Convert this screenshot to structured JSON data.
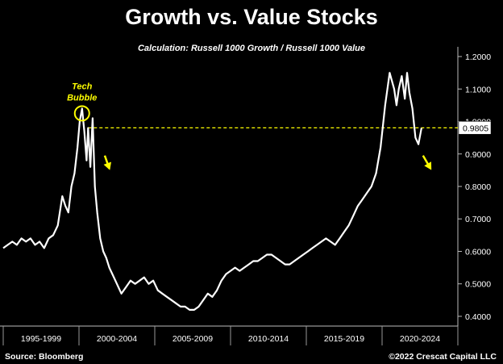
{
  "title": "Growth vs. Value Stocks",
  "subtitle": "Calculation: Russell 1000 Growth / Russell 1000 Value",
  "source": "Source: Bloomberg",
  "copyright": "©2022 Crescat Capital LLC",
  "colors": {
    "background": "#000000",
    "line": "#ffffff",
    "highlight": "#ffff00"
  },
  "chart_data": {
    "type": "line",
    "title": "Growth vs. Value Stocks",
    "subtitle": "Calculation: Russell 1000 Growth / Russell 1000 Value",
    "xlabel": "",
    "ylabel": "",
    "x_period_labels": [
      "1995-1999",
      "2000-2004",
      "2005-2009",
      "2010-2014",
      "2015-2019",
      "2020-2024"
    ],
    "y_ticks": [
      0.4,
      0.5,
      0.6,
      0.7,
      0.8,
      0.9,
      1.0,
      1.1,
      1.2
    ],
    "y_tick_labels": [
      "0.4000",
      "0.5000",
      "0.6000",
      "0.7000",
      "0.8000",
      "0.9000",
      "1.0000",
      "1.1000",
      "1.2000"
    ],
    "ylim": [
      0.37,
      1.22
    ],
    "xlim": [
      1995.0,
      2025.0
    ],
    "grid": false,
    "axis_side": "right",
    "last_value": 0.9805,
    "last_value_label": "0.9805",
    "reference_line": {
      "value": 0.9805,
      "style": "dashed",
      "color": "#ffff00"
    },
    "annotations": [
      {
        "text_lines": [
          "Tech",
          "Bubble"
        ],
        "x": 2000.2,
        "y": 1.025
      }
    ],
    "series": [
      {
        "x": [
          1995.0,
          1995.3,
          1995.6,
          1995.9,
          1996.2,
          1996.5,
          1996.8,
          1997.1,
          1997.4,
          1997.7,
          1998.0,
          1998.3,
          1998.6,
          1998.9,
          1999.1,
          1999.3,
          1999.5,
          1999.7,
          1999.9,
          2000.05,
          2000.2,
          2000.35,
          2000.5,
          2000.6,
          2000.75,
          2000.9,
          2001.05,
          2001.2,
          2001.4,
          2001.6,
          2001.8,
          2002.0,
          2002.2,
          2002.5,
          2002.8,
          2003.1,
          2003.4,
          2003.7,
          2004.0,
          2004.3,
          2004.6,
          2004.9,
          2005.2,
          2005.5,
          2005.8,
          2006.1,
          2006.4,
          2006.7,
          2007.0,
          2007.3,
          2007.6,
          2007.9,
          2008.2,
          2008.5,
          2008.8,
          2009.1,
          2009.4,
          2009.7,
          2010.0,
          2010.3,
          2010.6,
          2010.9,
          2011.2,
          2011.5,
          2011.8,
          2012.1,
          2012.4,
          2012.7,
          2013.0,
          2013.3,
          2013.6,
          2013.9,
          2014.2,
          2014.5,
          2014.8,
          2015.1,
          2015.4,
          2015.7,
          2016.0,
          2016.3,
          2016.6,
          2016.9,
          2017.2,
          2017.5,
          2017.8,
          2018.1,
          2018.4,
          2018.7,
          2019.0,
          2019.3,
          2019.6,
          2019.9,
          2020.2,
          2020.5,
          2020.8,
          2020.95,
          2021.1,
          2021.3,
          2021.5,
          2021.65,
          2021.8,
          2022.0,
          2022.2,
          2022.4,
          2022.6
        ],
        "values": [
          0.61,
          0.62,
          0.63,
          0.62,
          0.64,
          0.63,
          0.64,
          0.62,
          0.63,
          0.61,
          0.64,
          0.65,
          0.68,
          0.77,
          0.74,
          0.72,
          0.8,
          0.84,
          0.92,
          1.0,
          1.04,
          0.97,
          0.88,
          0.98,
          0.86,
          1.01,
          0.8,
          0.72,
          0.64,
          0.6,
          0.58,
          0.55,
          0.53,
          0.5,
          0.47,
          0.49,
          0.51,
          0.5,
          0.51,
          0.52,
          0.5,
          0.51,
          0.48,
          0.47,
          0.46,
          0.45,
          0.44,
          0.43,
          0.43,
          0.42,
          0.42,
          0.43,
          0.45,
          0.47,
          0.46,
          0.48,
          0.51,
          0.53,
          0.54,
          0.55,
          0.54,
          0.55,
          0.56,
          0.57,
          0.57,
          0.58,
          0.59,
          0.59,
          0.58,
          0.57,
          0.56,
          0.56,
          0.57,
          0.58,
          0.59,
          0.6,
          0.61,
          0.62,
          0.63,
          0.64,
          0.63,
          0.62,
          0.64,
          0.66,
          0.68,
          0.71,
          0.74,
          0.76,
          0.78,
          0.8,
          0.84,
          0.92,
          1.05,
          1.15,
          1.1,
          1.05,
          1.1,
          1.14,
          1.07,
          1.15,
          1.09,
          1.04,
          0.95,
          0.93,
          0.98
        ]
      }
    ]
  }
}
